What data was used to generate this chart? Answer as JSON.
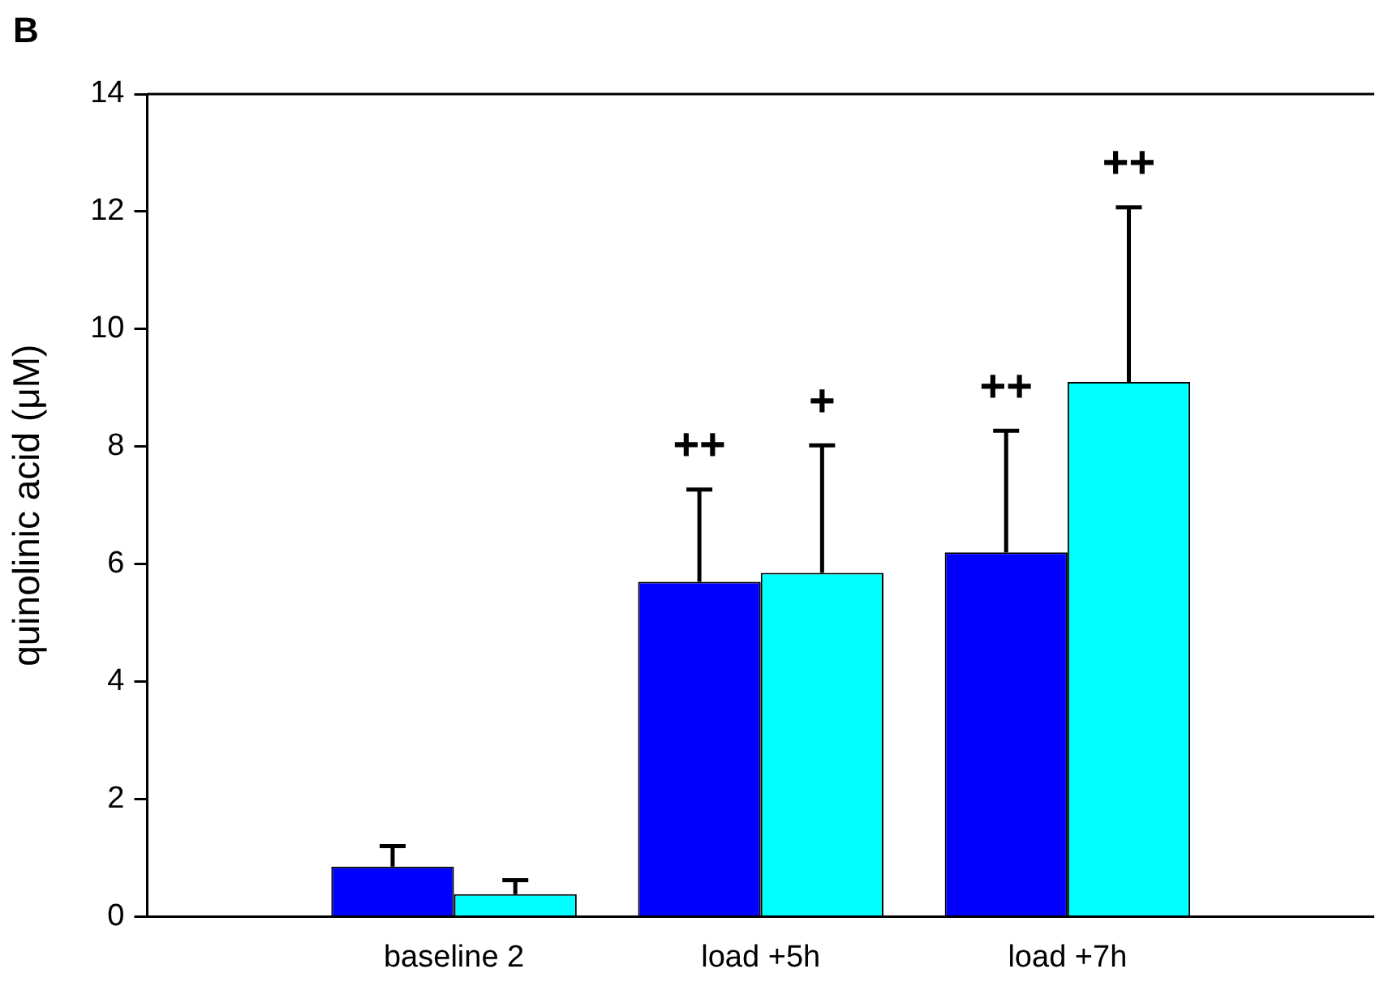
{
  "chart_data": {
    "type": "bar",
    "ylabel": "quinolinic acid (μM)",
    "categories": [
      null,
      "baseline 2",
      "load +5h",
      "load +7h",
      null
    ],
    "series": [
      {
        "color": "#0000ff",
        "values": [
          null,
          0.85,
          5.7,
          6.2,
          null
        ],
        "errors": [
          null,
          [
            0.85,
            1.2
          ],
          [
            5.7,
            7.27
          ],
          [
            6.2,
            8.27
          ],
          null
        ]
      },
      {
        "color": "#00ffff",
        "values": [
          null,
          0.38,
          5.85,
          9.1,
          null
        ],
        "errors": [
          null,
          [
            0.38,
            0.62
          ],
          [
            5.85,
            8.02
          ],
          [
            9.1,
            12.07
          ],
          null
        ]
      }
    ],
    "ylim": [
      0,
      14
    ],
    "yticks": [
      0,
      2,
      4,
      6,
      8,
      10,
      12,
      14
    ],
    "grid": false,
    "legend": false,
    "annotations": [
      "B",
      "++",
      "+",
      "++",
      "++"
    ]
  }
}
